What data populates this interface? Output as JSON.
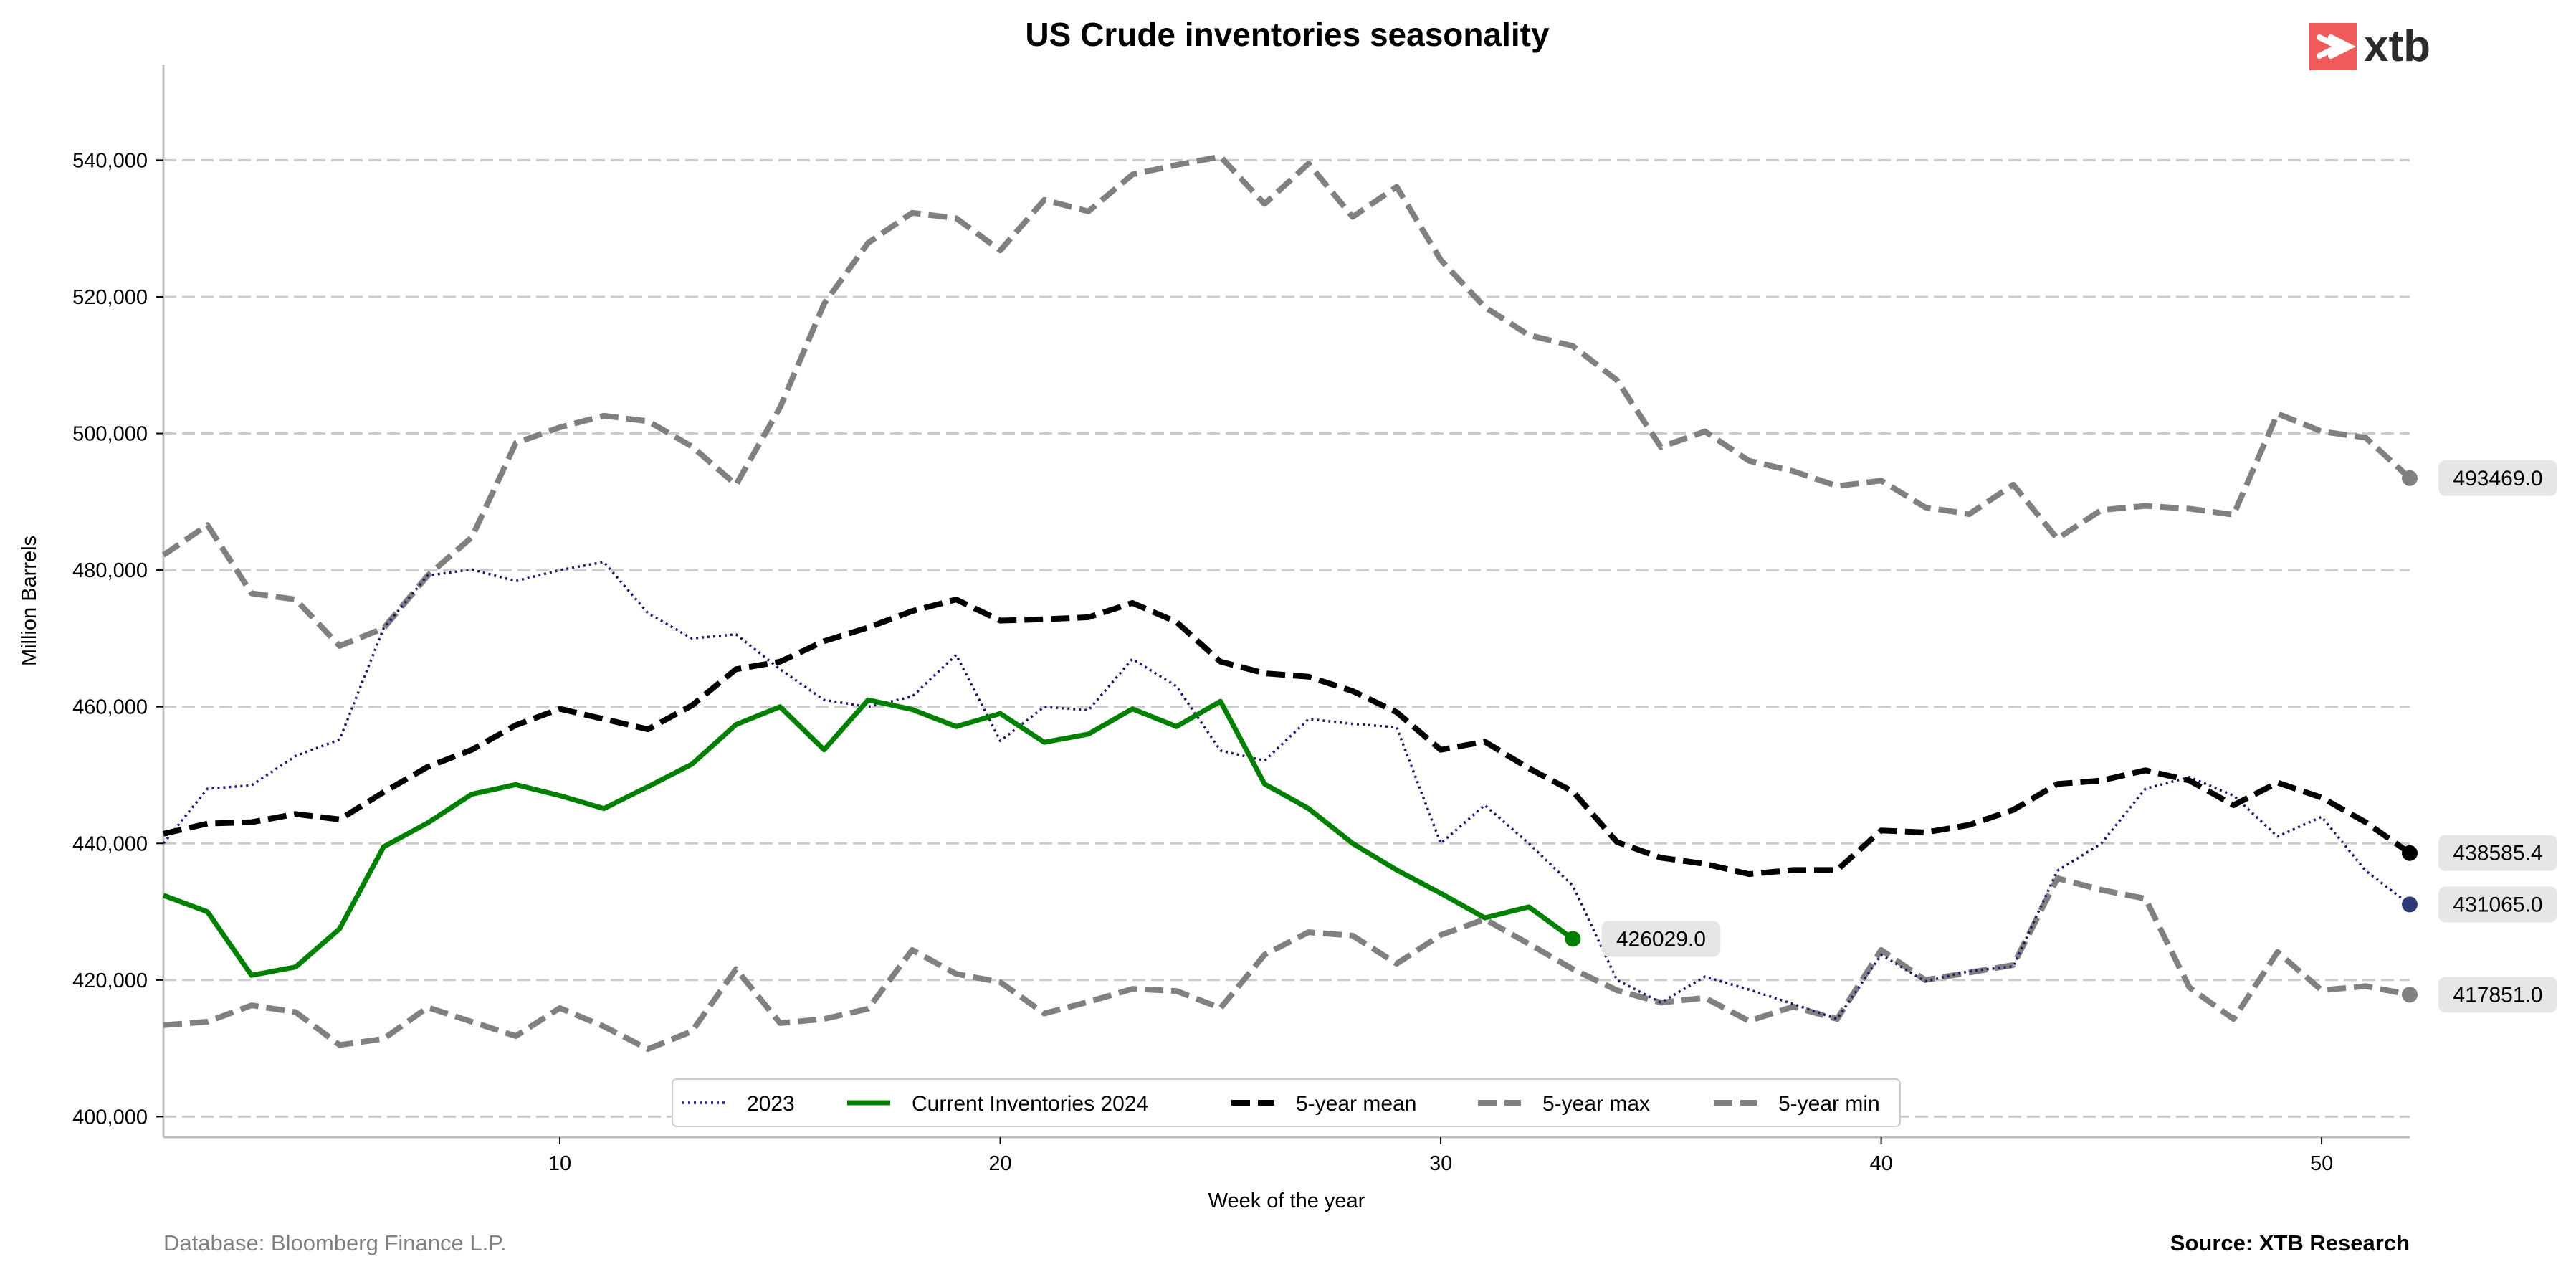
{
  "chart_data": {
    "type": "line",
    "title": "US Crude inventories seasonality",
    "xlabel": "Week of the year",
    "ylabel": "Million Barrels",
    "xlim": [
      1,
      52
    ],
    "ylim": [
      397000,
      554000
    ],
    "xticks": [
      10,
      20,
      30,
      40,
      50
    ],
    "yticks": [
      400000,
      420000,
      440000,
      460000,
      480000,
      500000,
      520000,
      540000
    ],
    "grid": "horizontal dashed",
    "legend_position": "bottom-center",
    "series": [
      {
        "name": "2023",
        "style": "dotted",
        "color": "#1f1a6b",
        "end_color": "#2e3a78",
        "x": [
          1,
          2,
          3,
          4,
          5,
          6,
          7,
          8,
          9,
          10,
          11,
          12,
          13,
          14,
          15,
          16,
          17,
          18,
          19,
          20,
          21,
          22,
          23,
          24,
          25,
          26,
          27,
          28,
          29,
          30,
          31,
          32,
          33,
          34,
          35,
          36,
          37,
          38,
          39,
          40,
          41,
          42,
          43,
          44,
          45,
          46,
          47,
          48,
          49,
          50,
          51,
          52
        ],
        "values": [
          440000,
          448000,
          448500,
          452800,
          455200,
          471500,
          479200,
          480100,
          478400,
          480000,
          481200,
          473700,
          470000,
          470600,
          465500,
          461000,
          460000,
          461500,
          467600,
          455000,
          460000,
          459500,
          467000,
          463000,
          453600,
          452100,
          458200,
          457500,
          457000,
          440000,
          445600,
          440000,
          433800,
          420000,
          416700,
          420500,
          418600,
          416500,
          414300,
          423700,
          419800,
          421300,
          422000,
          436000,
          440000,
          448000,
          449700,
          447000,
          441000,
          443900,
          436000,
          431065
        ],
        "end_label": "431065.0",
        "label_anchor": 431065
      },
      {
        "name": "Current Inventories 2024",
        "style": "solid",
        "color": "#008000",
        "x": [
          1,
          2,
          3,
          4,
          5,
          6,
          7,
          8,
          9,
          10,
          11,
          12,
          13,
          14,
          15,
          16,
          17,
          18,
          19,
          20,
          21,
          22,
          23,
          24,
          25,
          26,
          27,
          28,
          29,
          30,
          31,
          32,
          33
        ],
        "values": [
          432400,
          430000,
          420700,
          421900,
          427500,
          439500,
          443000,
          447200,
          448600,
          447000,
          445100,
          448300,
          451600,
          457400,
          460000,
          453700,
          461000,
          459600,
          457100,
          459000,
          454800,
          456000,
          459700,
          457100,
          460800,
          448700,
          445100,
          440000,
          436100,
          432700,
          429100,
          430700,
          426029
        ],
        "end_label": "426029.0",
        "label_anchor": 426029
      },
      {
        "name": "5-year mean",
        "style": "dashed",
        "color": "#000000",
        "x": [
          1,
          2,
          3,
          4,
          5,
          6,
          7,
          8,
          9,
          10,
          11,
          12,
          13,
          14,
          15,
          16,
          17,
          18,
          19,
          20,
          21,
          22,
          23,
          24,
          25,
          26,
          27,
          28,
          29,
          30,
          31,
          32,
          33,
          34,
          35,
          36,
          37,
          38,
          39,
          40,
          41,
          42,
          43,
          44,
          45,
          46,
          47,
          48,
          49,
          50,
          51,
          52
        ],
        "values": [
          441400,
          442900,
          443100,
          444300,
          443500,
          447500,
          451200,
          453700,
          457300,
          459700,
          458200,
          456700,
          460200,
          465500,
          466600,
          469600,
          471600,
          474000,
          475700,
          472600,
          472800,
          473100,
          475200,
          472400,
          466600,
          464900,
          464400,
          462300,
          459200,
          453700,
          454900,
          451000,
          447600,
          440200,
          437900,
          437000,
          435500,
          436100,
          436100,
          441900,
          441600,
          442700,
          444900,
          448700,
          449200,
          450700,
          449200,
          445600,
          448900,
          446700,
          443100,
          438585.4
        ],
        "end_label": "438585.4",
        "label_anchor": 438585.4
      },
      {
        "name": "5-year max",
        "style": "dashed",
        "color": "#808080",
        "x": [
          1,
          2,
          3,
          4,
          5,
          6,
          7,
          8,
          9,
          10,
          11,
          12,
          13,
          14,
          15,
          16,
          17,
          18,
          19,
          20,
          21,
          22,
          23,
          24,
          25,
          26,
          27,
          28,
          29,
          30,
          31,
          32,
          33,
          34,
          35,
          36,
          37,
          38,
          39,
          40,
          41,
          42,
          43,
          44,
          45,
          46,
          47,
          48,
          49,
          50,
          51,
          52
        ],
        "values": [
          482200,
          486600,
          476600,
          475700,
          468900,
          471500,
          479200,
          484800,
          498600,
          500900,
          502600,
          501800,
          498100,
          492500,
          503800,
          519000,
          527900,
          532300,
          531500,
          526800,
          534200,
          532500,
          537900,
          539300,
          540500,
          533600,
          539500,
          531700,
          536100,
          525400,
          518500,
          514400,
          512800,
          507800,
          498000,
          500300,
          496000,
          494500,
          492300,
          493100,
          489200,
          488200,
          492500,
          484600,
          488800,
          489400,
          489000,
          488100,
          502900,
          500300,
          499400,
          493469
        ],
        "end_label": "493469.0",
        "label_anchor": 493469
      },
      {
        "name": "5-year min",
        "style": "dashed",
        "color": "#808080",
        "x": [
          1,
          2,
          3,
          4,
          5,
          6,
          7,
          8,
          9,
          10,
          11,
          12,
          13,
          14,
          15,
          16,
          17,
          18,
          19,
          20,
          21,
          22,
          23,
          24,
          25,
          26,
          27,
          28,
          29,
          30,
          31,
          32,
          33,
          34,
          35,
          36,
          37,
          38,
          39,
          40,
          41,
          42,
          43,
          44,
          45,
          46,
          47,
          48,
          49,
          50,
          51,
          52
        ],
        "values": [
          413400,
          413900,
          416300,
          415300,
          410500,
          411400,
          416000,
          413900,
          411800,
          415900,
          413200,
          409900,
          412500,
          421600,
          413700,
          414300,
          415800,
          424400,
          420900,
          419700,
          415100,
          416800,
          418700,
          418400,
          415900,
          423700,
          427000,
          426500,
          422400,
          426600,
          428900,
          425300,
          421600,
          418500,
          416700,
          417400,
          414000,
          416100,
          414300,
          424400,
          420000,
          421100,
          422200,
          434900,
          433200,
          431900,
          418900,
          414300,
          424100,
          418500,
          419100,
          417851
        ],
        "end_label": "417851.0",
        "label_anchor": 417851
      }
    ]
  },
  "footer": {
    "database": "Database: Bloomberg Finance L.P.",
    "source": "Source: XTB Research"
  },
  "logo": {
    "text": "xtb",
    "color": "#f05a5a"
  }
}
